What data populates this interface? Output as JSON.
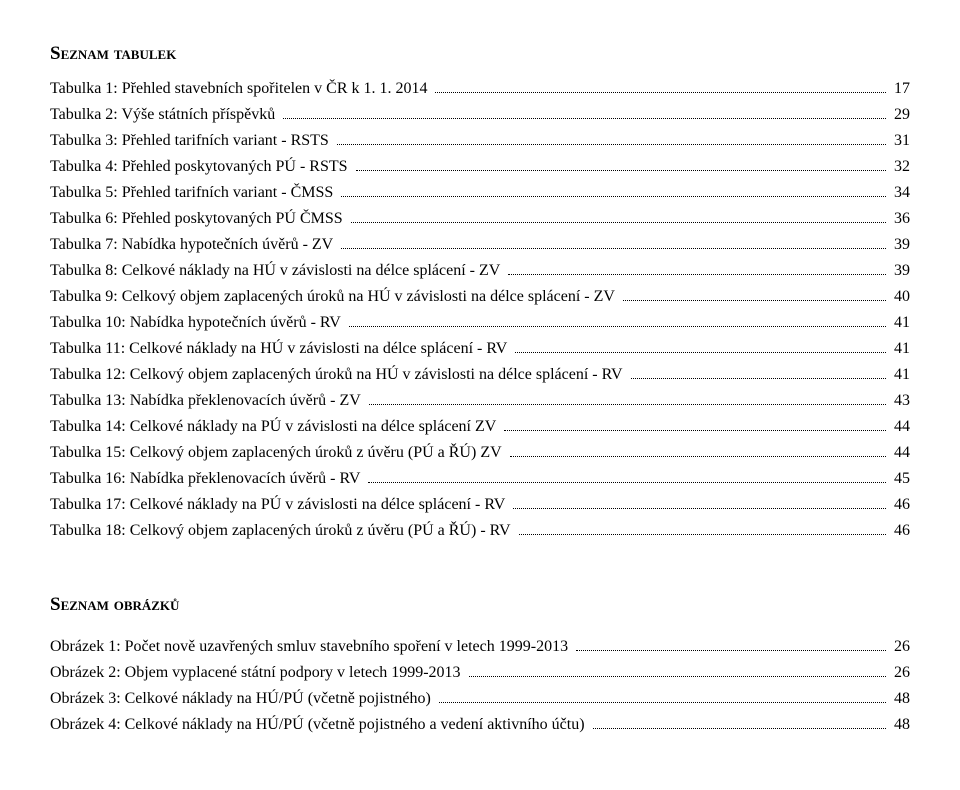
{
  "headings": {
    "tabulek": "Seznam tabulek",
    "obrazku": "Seznam obrázků"
  },
  "tables": [
    {
      "label": "Tabulka 1: Přehled stavebních spořitelen v ČR k 1. 1. 2014",
      "page": "17"
    },
    {
      "label": "Tabulka 2: Výše státních příspěvků",
      "page": "29"
    },
    {
      "label": "Tabulka 3: Přehled tarifních variant - RSTS",
      "page": "31"
    },
    {
      "label": "Tabulka 4: Přehled poskytovaných PÚ - RSTS",
      "page": "32"
    },
    {
      "label": "Tabulka 5: Přehled tarifních variant - ČMSS",
      "page": "34"
    },
    {
      "label": "Tabulka 6: Přehled poskytovaných PÚ ČMSS",
      "page": "36"
    },
    {
      "label": "Tabulka 7: Nabídka hypotečních úvěrů - ZV",
      "page": "39"
    },
    {
      "label": "Tabulka 8: Celkové náklady na HÚ v závislosti na délce splácení - ZV",
      "page": "39"
    },
    {
      "label": "Tabulka 9: Celkový objem zaplacených úroků na HÚ v závislosti na délce splácení - ZV",
      "page": "40"
    },
    {
      "label": "Tabulka 10: Nabídka hypotečních úvěrů - RV",
      "page": "41"
    },
    {
      "label": "Tabulka 11: Celkové náklady na HÚ v závislosti na délce splácení - RV",
      "page": "41"
    },
    {
      "label": "Tabulka 12: Celkový objem zaplacených úroků na HÚ v závislosti na délce splácení - RV",
      "page": "41"
    },
    {
      "label": "Tabulka 13: Nabídka překlenovacích úvěrů - ZV",
      "page": "43"
    },
    {
      "label": "Tabulka 14: Celkové náklady na PÚ v závislosti na délce splácení ZV",
      "page": "44"
    },
    {
      "label": "Tabulka 15: Celkový objem zaplacených úroků z úvěru (PÚ a ŘÚ) ZV",
      "page": "44"
    },
    {
      "label": "Tabulka 16: Nabídka překlenovacích úvěrů - RV",
      "page": "45"
    },
    {
      "label": "Tabulka 17: Celkové náklady na PÚ v závislosti na délce splácení - RV",
      "page": "46"
    },
    {
      "label": "Tabulka 18: Celkový objem zaplacených úroků z úvěru (PÚ a ŘÚ) - RV",
      "page": "46"
    }
  ],
  "figures": [
    {
      "label": "Obrázek 1: Počet nově uzavřených smluv stavebního spoření v letech 1999-2013",
      "page": "26"
    },
    {
      "label": "Obrázek 2: Objem vyplacené státní podpory v letech 1999-2013",
      "page": "26"
    },
    {
      "label": "Obrázek 3: Celkové náklady na HÚ/PÚ (včetně pojistného)",
      "page": "48"
    },
    {
      "label": "Obrázek 4: Celkové náklady na HÚ/PÚ (včetně pojistného a vedení aktivního účtu)",
      "page": "48"
    }
  ]
}
